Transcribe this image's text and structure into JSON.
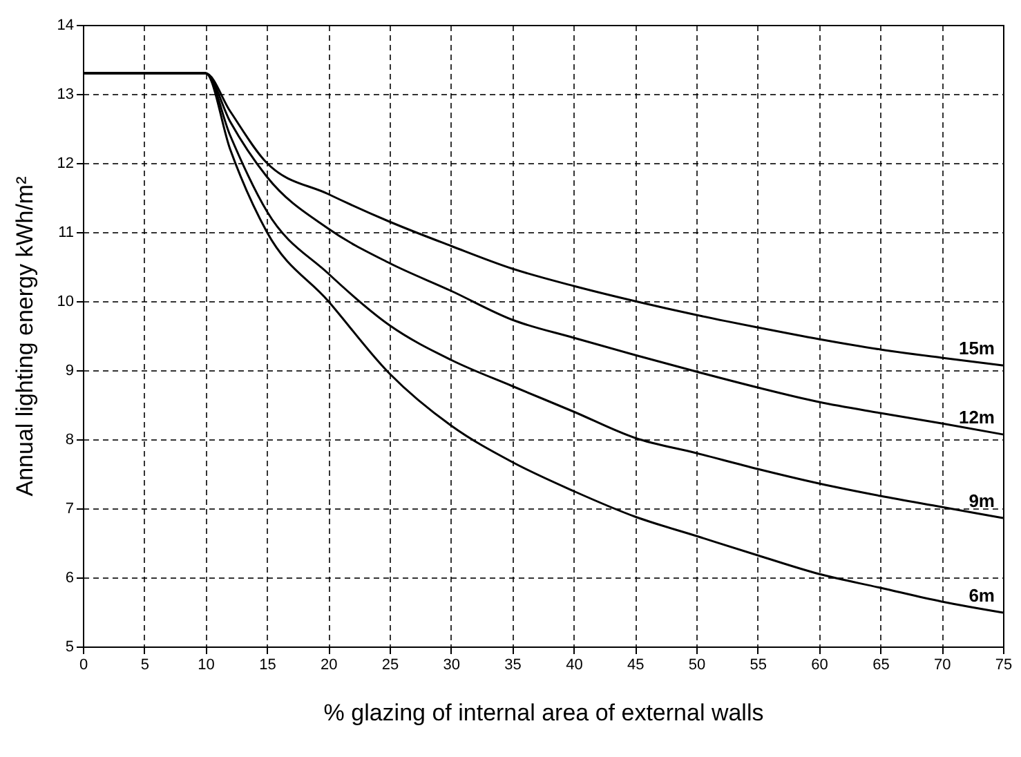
{
  "chart_data": {
    "type": "line",
    "xlabel": "% glazing of internal area of external walls",
    "ylabel": "Annual lighting energy kWh/m²",
    "x": [
      0,
      10,
      12,
      15,
      20,
      25,
      30,
      35,
      40,
      45,
      50,
      55,
      60,
      65,
      70,
      75
    ],
    "series": [
      {
        "name": "15m",
        "color": "#000000",
        "values": [
          13.3,
          13.3,
          12.75,
          12.0,
          11.55,
          11.15,
          10.8,
          10.47,
          10.22,
          10.0,
          9.8,
          9.62,
          9.45,
          9.3,
          9.18,
          9.07
        ]
      },
      {
        "name": "12m",
        "color": "#000000",
        "values": [
          13.3,
          13.3,
          12.6,
          11.8,
          11.05,
          10.55,
          10.15,
          9.73,
          9.47,
          9.22,
          8.98,
          8.75,
          8.54,
          8.38,
          8.23,
          8.07
        ]
      },
      {
        "name": "9m",
        "color": "#000000",
        "values": [
          13.3,
          13.3,
          12.4,
          11.3,
          10.4,
          9.65,
          9.15,
          8.77,
          8.4,
          8.02,
          7.8,
          7.57,
          7.36,
          7.18,
          7.02,
          6.86
        ]
      },
      {
        "name": "6m",
        "color": "#000000",
        "values": [
          13.3,
          13.3,
          12.2,
          11.0,
          10.0,
          8.95,
          8.2,
          7.67,
          7.25,
          6.88,
          6.6,
          6.32,
          6.05,
          5.85,
          5.65,
          5.49
        ]
      }
    ],
    "xlim": [
      0,
      75
    ],
    "xticks": [
      0,
      5,
      10,
      15,
      20,
      25,
      30,
      35,
      40,
      45,
      50,
      55,
      60,
      65,
      70,
      75
    ],
    "ylim": [
      5,
      14
    ],
    "yticks": [
      5,
      6,
      7,
      8,
      9,
      10,
      11,
      12,
      13,
      14
    ],
    "grid": true,
    "legend": false,
    "marker": "none",
    "line_style": "solid"
  }
}
